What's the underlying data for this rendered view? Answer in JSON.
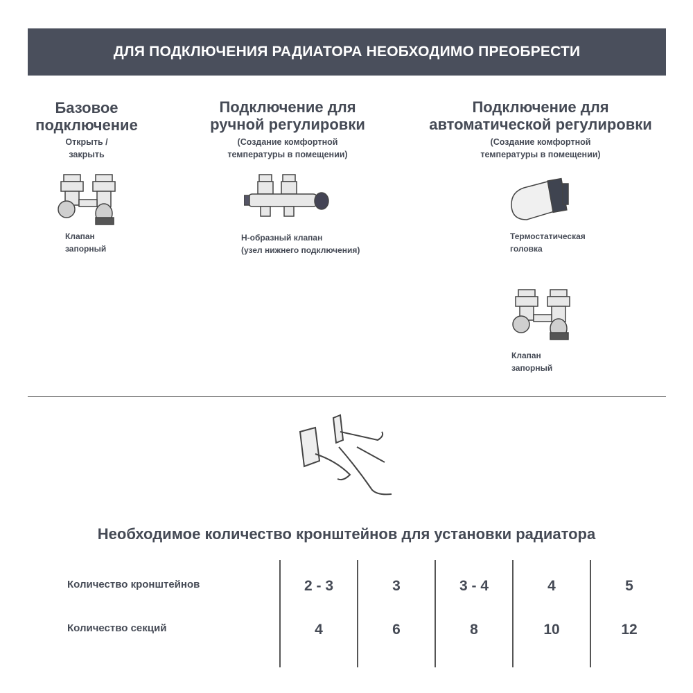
{
  "banner": {
    "title": "ДЛЯ ПОДКЛЮЧЕНИЯ РАДИАТОРА НЕОБХОДИМО ПРЕОБРЕСТИ"
  },
  "columns": [
    {
      "heading_l1": "Базовое",
      "heading_l2": "подключение",
      "sub_l1": "Открыть /",
      "sub_l2": "закрыть",
      "items": [
        {
          "caption_l1": "Клапан",
          "caption_l2": "запорный",
          "icon": "shutoff-valve-icon"
        }
      ]
    },
    {
      "heading_l1": "Подключение для",
      "heading_l2": "ручной регулировки",
      "sub_l1": "(Создание комфортной",
      "sub_l2": "температуры в помещении)",
      "items": [
        {
          "caption_l1": "Н-образный клапан",
          "caption_l2": "(узел нижнего подключения)",
          "icon": "h-valve-icon"
        }
      ]
    },
    {
      "heading_l1": "Подключение для",
      "heading_l2": "автоматической регулировки",
      "sub_l1": "(Создание комфортной",
      "sub_l2": "температуры в помещении)",
      "items": [
        {
          "caption_l1": "Термостатическая",
          "caption_l2": "головка",
          "icon": "thermostatic-head-icon"
        },
        {
          "caption_l1": "Клапан",
          "caption_l2": "запорный",
          "icon": "shutoff-valve-icon"
        }
      ]
    }
  ],
  "brackets": {
    "title": "Необходимое количество кронштейнов для установки радиатора",
    "rows": [
      {
        "label": "Количество кронштейнов",
        "values": [
          "2 - 3",
          "3",
          "3 - 4",
          "4",
          "5"
        ]
      },
      {
        "label": "Количество секций",
        "values": [
          "4",
          "6",
          "8",
          "10",
          "12"
        ]
      }
    ]
  },
  "colors": {
    "banner_bg": "#4a4f5c",
    "text": "#454a55"
  }
}
